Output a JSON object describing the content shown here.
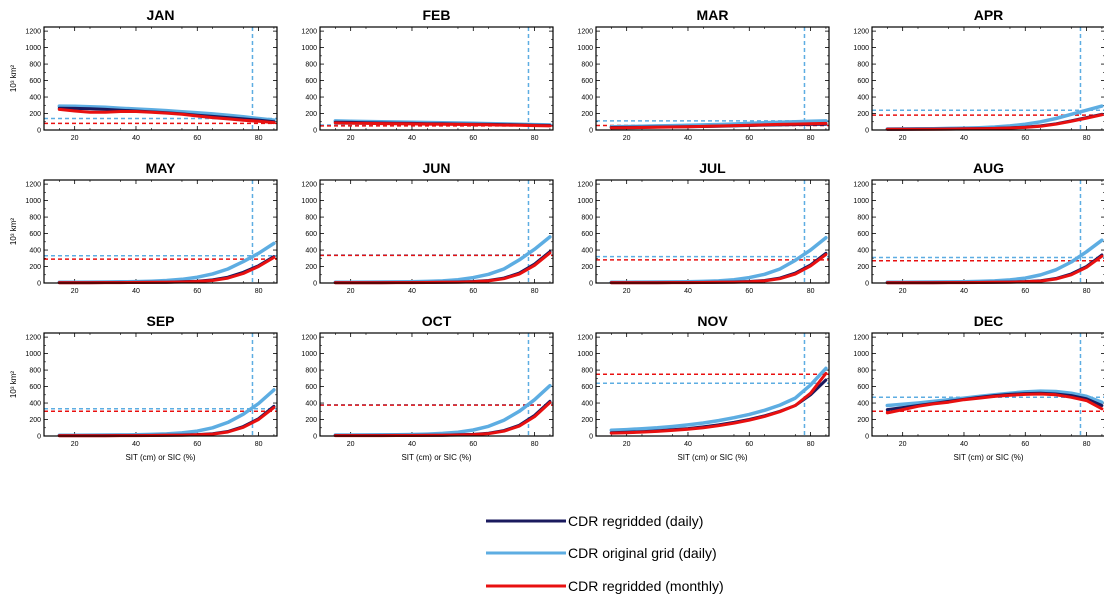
{
  "chart_data": {
    "type": "line",
    "x_range": [
      10,
      86
    ],
    "y_range": [
      0,
      1250
    ],
    "x_ticks": [
      20,
      40,
      60,
      80
    ],
    "y_ticks": [
      0,
      200,
      400,
      600,
      800,
      1000,
      1200
    ],
    "ylabel": "10³ km²",
    "xlabel": "SIT (cm) or SIC (%)",
    "vertical_reference_x": 78,
    "legend_position": "bottom-center",
    "series_styles": [
      {
        "name": "CDR regridded (daily)",
        "color": "#1a1a5e"
      },
      {
        "name": "CDR original grid (daily)",
        "color": "#5dade2"
      },
      {
        "name": "CDR regridded (monthly)",
        "color": "#e81010"
      }
    ],
    "x": [
      15,
      20,
      25,
      30,
      35,
      40,
      45,
      50,
      55,
      60,
      65,
      70,
      75,
      80,
      85
    ],
    "panels": [
      {
        "title": "JAN",
        "ref_blue": 140,
        "ref_red": 80,
        "series": [
          [
            265,
            262,
            258,
            250,
            240,
            230,
            220,
            210,
            195,
            180,
            165,
            150,
            135,
            120,
            100
          ],
          [
            290,
            288,
            282,
            275,
            265,
            255,
            245,
            235,
            222,
            210,
            195,
            180,
            160,
            140,
            120
          ],
          [
            250,
            230,
            215,
            215,
            225,
            225,
            215,
            205,
            190,
            170,
            150,
            135,
            118,
            105,
            90
          ]
        ]
      },
      {
        "title": "FEB",
        "ref_blue": 60,
        "ref_red": 50,
        "series": [
          [
            95,
            92,
            88,
            85,
            82,
            80,
            77,
            75,
            72,
            70,
            68,
            65,
            62,
            58,
            55
          ],
          [
            110,
            107,
            103,
            100,
            97,
            94,
            91,
            88,
            85,
            82,
            78,
            74,
            70,
            66,
            62
          ],
          [
            85,
            82,
            80,
            78,
            76,
            74,
            72,
            70,
            68,
            66,
            63,
            60,
            57,
            54,
            50
          ]
        ]
      },
      {
        "title": "MAR",
        "ref_blue": 110,
        "ref_red": 55,
        "series": [
          [
            30,
            32,
            34,
            36,
            38,
            40,
            42,
            45,
            50,
            55,
            60,
            62,
            65,
            68,
            70
          ],
          [
            40,
            43,
            46,
            50,
            53,
            57,
            62,
            67,
            73,
            80,
            88,
            95,
            100,
            105,
            110
          ],
          [
            25,
            27,
            30,
            33,
            36,
            40,
            44,
            48,
            53,
            58,
            63,
            68,
            72,
            76,
            80
          ]
        ]
      },
      {
        "title": "APR",
        "ref_blue": 240,
        "ref_red": 180,
        "series": [
          [
            10,
            10,
            11,
            12,
            13,
            15,
            17,
            20,
            26,
            35,
            50,
            75,
            110,
            150,
            190
          ],
          [
            12,
            13,
            14,
            16,
            19,
            23,
            28,
            36,
            50,
            70,
            100,
            140,
            190,
            240,
            290
          ],
          [
            8,
            8,
            9,
            10,
            11,
            13,
            15,
            18,
            24,
            32,
            45,
            70,
            105,
            145,
            185
          ]
        ]
      },
      {
        "title": "MAY",
        "ref_blue": 330,
        "ref_red": 290,
        "series": [
          [
            5,
            5,
            5,
            6,
            6,
            7,
            8,
            10,
            14,
            22,
            38,
            70,
            130,
            210,
            320
          ],
          [
            10,
            10,
            11,
            12,
            14,
            17,
            22,
            30,
            45,
            70,
            110,
            170,
            260,
            360,
            480
          ],
          [
            4,
            4,
            4,
            5,
            5,
            6,
            7,
            9,
            12,
            18,
            30,
            60,
            115,
            200,
            310
          ]
        ]
      },
      {
        "title": "JUN",
        "ref_blue": 340,
        "ref_red": 335,
        "series": [
          [
            5,
            5,
            5,
            5,
            6,
            6,
            7,
            9,
            12,
            18,
            30,
            60,
            120,
            230,
            380
          ],
          [
            10,
            10,
            11,
            12,
            13,
            15,
            19,
            26,
            40,
            65,
            105,
            170,
            280,
            410,
            560
          ],
          [
            4,
            4,
            4,
            4,
            5,
            5,
            6,
            8,
            10,
            15,
            25,
            52,
            108,
            215,
            365
          ]
        ]
      },
      {
        "title": "JUL",
        "ref_blue": 320,
        "ref_red": 280,
        "series": [
          [
            5,
            5,
            5,
            5,
            6,
            6,
            7,
            9,
            12,
            18,
            30,
            60,
            120,
            220,
            360
          ],
          [
            10,
            10,
            11,
            12,
            13,
            15,
            19,
            26,
            40,
            65,
            105,
            170,
            275,
            400,
            550
          ],
          [
            4,
            4,
            4,
            4,
            5,
            5,
            6,
            8,
            10,
            15,
            25,
            52,
            108,
            208,
            345
          ]
        ]
      },
      {
        "title": "AUG",
        "ref_blue": 310,
        "ref_red": 270,
        "series": [
          [
            5,
            5,
            5,
            5,
            6,
            6,
            7,
            9,
            12,
            17,
            28,
            55,
            110,
            200,
            340
          ],
          [
            10,
            10,
            11,
            12,
            13,
            15,
            19,
            25,
            38,
            60,
            98,
            160,
            255,
            380,
            520
          ],
          [
            4,
            4,
            4,
            4,
            5,
            5,
            6,
            8,
            10,
            14,
            23,
            48,
            100,
            190,
            325
          ]
        ]
      },
      {
        "title": "SEP",
        "ref_blue": 330,
        "ref_red": 300,
        "series": [
          [
            5,
            5,
            5,
            5,
            6,
            6,
            7,
            9,
            12,
            17,
            28,
            55,
            115,
            210,
            360
          ],
          [
            10,
            10,
            11,
            12,
            13,
            15,
            19,
            25,
            38,
            60,
            100,
            165,
            265,
            395,
            560
          ],
          [
            4,
            4,
            4,
            4,
            5,
            5,
            6,
            8,
            10,
            14,
            23,
            48,
            105,
            200,
            345
          ]
        ]
      },
      {
        "title": "OCT",
        "ref_blue": 380,
        "ref_red": 375,
        "series": [
          [
            6,
            6,
            6,
            6,
            7,
            7,
            8,
            10,
            14,
            20,
            34,
            65,
            130,
            250,
            420
          ],
          [
            12,
            12,
            13,
            14,
            15,
            18,
            23,
            31,
            46,
            73,
            118,
            190,
            300,
            440,
            610
          ],
          [
            5,
            5,
            5,
            5,
            6,
            6,
            7,
            9,
            12,
            17,
            29,
            58,
            120,
            235,
            405
          ]
        ]
      },
      {
        "title": "NOV",
        "ref_blue": 640,
        "ref_red": 750,
        "series": [
          [
            40,
            45,
            52,
            62,
            75,
            90,
            110,
            135,
            165,
            200,
            245,
            300,
            370,
            500,
            680
          ],
          [
            70,
            78,
            88,
            100,
            115,
            135,
            158,
            187,
            222,
            262,
            312,
            375,
            460,
            620,
            820
          ],
          [
            35,
            40,
            47,
            56,
            68,
            82,
            100,
            125,
            155,
            192,
            238,
            295,
            370,
            520,
            760
          ]
        ]
      },
      {
        "title": "DEC",
        "ref_blue": 470,
        "ref_red": 300,
        "series": [
          [
            320,
            345,
            370,
            395,
            420,
            445,
            470,
            490,
            505,
            515,
            518,
            510,
            490,
            450,
            370
          ],
          [
            370,
            385,
            400,
            420,
            440,
            460,
            480,
            500,
            520,
            535,
            545,
            540,
            520,
            480,
            410
          ],
          [
            280,
            320,
            360,
            390,
            410,
            440,
            460,
            480,
            495,
            505,
            510,
            500,
            470,
            430,
            330
          ]
        ]
      }
    ]
  },
  "legend": {
    "items": [
      {
        "label": "CDR regridded (daily)"
      },
      {
        "label": "CDR original grid (daily)"
      },
      {
        "label": "CDR regridded (monthly)"
      }
    ]
  }
}
